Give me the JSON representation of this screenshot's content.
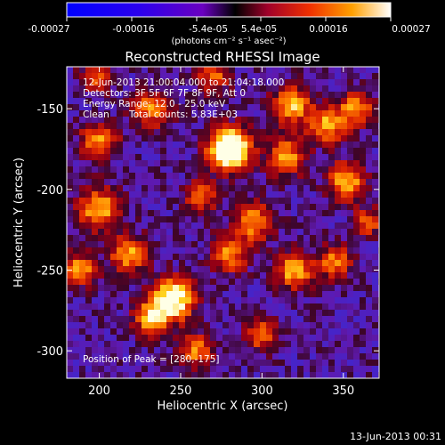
{
  "colorbar": {
    "tick_labels": [
      "-0.00027",
      "-0.00016",
      "-5.4e-05",
      "5.4e-05",
      "0.00016",
      "0.00027"
    ],
    "units_label": "(photons cm⁻² s⁻¹ asec⁻²)",
    "range": [
      -0.00027,
      0.00027
    ]
  },
  "chart_data": {
    "type": "heatmap",
    "title": "Reconstructed RHESSI Image",
    "xlabel": "Heliocentric X (arcsec)",
    "ylabel": "Heliocentric Y (arcsec)",
    "xlim": [
      180,
      372
    ],
    "ylim": [
      -317,
      -124
    ],
    "x_ticks": [
      "200",
      "250",
      "300",
      "350"
    ],
    "y_ticks": [
      "-150",
      "-200",
      "-250",
      "-300"
    ],
    "annotations": [
      "12-Jun-2013 21:00:04.000 to 21:04:18.000",
      "Detectors: 3F 5F 6F 7F 8F 9F, Att 0",
      "Energy Range: 12.0 - 25.0 keV",
      "Clean",
      "Total counts: 5.83E+03"
    ],
    "peak_label": "Position of Peak = [280,-175]",
    "peak_position": [
      280,
      -175
    ],
    "sources": [
      {
        "x": 280,
        "y": -175,
        "amplitude": 1.0,
        "width": 9
      },
      {
        "x": 245,
        "y": -268,
        "amplitude": 0.8,
        "width": 9
      },
      {
        "x": 232,
        "y": -280,
        "amplitude": 0.55,
        "width": 7
      },
      {
        "x": 318,
        "y": -148,
        "amplitude": 0.55,
        "width": 8
      },
      {
        "x": 315,
        "y": -180,
        "amplitude": 0.5,
        "width": 8
      },
      {
        "x": 340,
        "y": -160,
        "amplitude": 0.5,
        "width": 8
      },
      {
        "x": 358,
        "y": -150,
        "amplitude": 0.5,
        "width": 7
      },
      {
        "x": 352,
        "y": -195,
        "amplitude": 0.55,
        "width": 8
      },
      {
        "x": 295,
        "y": -220,
        "amplitude": 0.5,
        "width": 8
      },
      {
        "x": 280,
        "y": -240,
        "amplitude": 0.45,
        "width": 8
      },
      {
        "x": 320,
        "y": -250,
        "amplitude": 0.55,
        "width": 8
      },
      {
        "x": 345,
        "y": -245,
        "amplitude": 0.45,
        "width": 7
      },
      {
        "x": 200,
        "y": -212,
        "amplitude": 0.55,
        "width": 9
      },
      {
        "x": 200,
        "y": -170,
        "amplitude": 0.45,
        "width": 8
      },
      {
        "x": 232,
        "y": -150,
        "amplitude": 0.45,
        "width": 8
      },
      {
        "x": 218,
        "y": -240,
        "amplitude": 0.5,
        "width": 8
      },
      {
        "x": 188,
        "y": -250,
        "amplitude": 0.5,
        "width": 7
      },
      {
        "x": 262,
        "y": -205,
        "amplitude": 0.4,
        "width": 7
      },
      {
        "x": 260,
        "y": -300,
        "amplitude": 0.45,
        "width": 7
      },
      {
        "x": 300,
        "y": -290,
        "amplitude": 0.4,
        "width": 7
      },
      {
        "x": 270,
        "y": -130,
        "amplitude": 0.4,
        "width": 7
      },
      {
        "x": 198,
        "y": -130,
        "amplitude": 0.35,
        "width": 7
      },
      {
        "x": 365,
        "y": -220,
        "amplitude": 0.4,
        "width": 6
      }
    ],
    "background_level": 0.33,
    "grid": false
  },
  "footer": {
    "timestamp": "13-Jun-2013 00:31"
  }
}
